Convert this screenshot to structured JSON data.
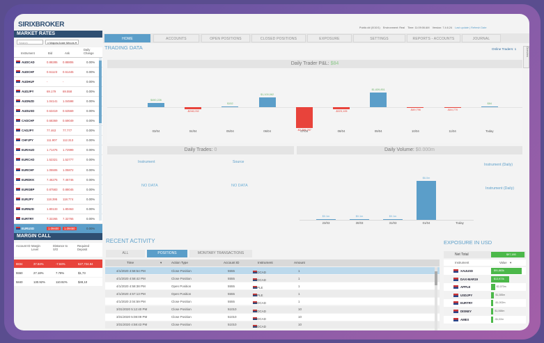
{
  "app": {
    "logo": "SIRIXBROKER"
  },
  "top_info": [
    "Public ## (0/10/1)",
    "Environment: Real",
    "Time: 11:09:06 AM",
    "Version: 7.4.6.24",
    "Last update | Refresh Date"
  ],
  "nav": [
    "HOME",
    "ACCOUNTS",
    "OPEN POSITIONS",
    "CLOSED POSITIONS",
    "EXPOSURE",
    "SETTINGS",
    "REPORTS - ACCOUNTS",
    "JOURNAL"
  ],
  "trading_data_title": "TRADING DATA",
  "online_traders": "Online Traders: 1",
  "side_tab": "Overview",
  "market_rates": {
    "title": "MARKET RATES",
    "search_placeholder": "Search",
    "group": "x Majors/Juste Minors",
    "columns": [
      "Instrument",
      "Bid",
      "Ask",
      "Daily Change"
    ],
    "rows": [
      {
        "sym": "AUDCAD",
        "bid": "0.88285",
        "ask": "0.88806",
        "chg": "0.00%"
      },
      {
        "sym": "AUDCHF",
        "bid": "0.61123",
        "ask": "0.61445",
        "chg": "0.00%"
      },
      {
        "sym": "AUDHUF",
        "bid": "-",
        "ask": "-",
        "chg": "0.00%"
      },
      {
        "sym": "AUDJPY",
        "bid": "69.179",
        "ask": "69.558",
        "chg": "0.00%"
      },
      {
        "sym": "AUDNZD",
        "bid": "1.04141",
        "ask": "1.04598",
        "chg": "0.00%"
      },
      {
        "sym": "AUDUSD",
        "bid": "0.63419",
        "ask": "0.63569",
        "chg": "0.00%"
      },
      {
        "sym": "CADCHF",
        "bid": "0.68369",
        "ask": "0.69049",
        "chg": "0.00%"
      },
      {
        "sym": "CADJPY",
        "bid": "77.463",
        "ask": "77.777",
        "chg": "0.00%"
      },
      {
        "sym": "CHFJPY",
        "bid": "111.907",
        "ask": "112.313",
        "chg": "0.00%"
      },
      {
        "sym": "EURAUD",
        "bid": "1.71476",
        "ask": "1.72999",
        "chg": "0.00%"
      },
      {
        "sym": "EURCAD",
        "bid": "1.52321",
        "ask": "1.52777",
        "chg": "0.00%"
      },
      {
        "sym": "EURCHF",
        "bid": "1.05506",
        "ask": "1.05872",
        "chg": "0.00%"
      },
      {
        "sym": "EURDKK",
        "bid": "7.46275",
        "ask": "7.46746",
        "chg": "0.00%"
      },
      {
        "sym": "EURGBP",
        "bid": "0.87583",
        "ask": "0.88045",
        "chg": "0.00%"
      },
      {
        "sym": "EURJPY",
        "bid": "118.395",
        "ask": "118.774",
        "chg": "0.00%"
      },
      {
        "sym": "EURNZD",
        "bid": "1.80133",
        "ask": "1.80463",
        "chg": "0.00%"
      },
      {
        "sym": "EURTRY",
        "bid": "7.32265",
        "ask": "7.32765",
        "chg": "0.00%"
      },
      {
        "sym": "EURUSD",
        "bid": "1.09400",
        "ask": "1.09450",
        "chg": "0.00%"
      }
    ]
  },
  "margin_call": {
    "title": "MARGIN CALL",
    "columns": [
      "Account ID",
      "Margin Level",
      "Distance to S/O",
      "Required Deposit"
    ],
    "rows": [
      {
        "id": "8834",
        "level": "37.84%",
        "dist": "-7.84%",
        "dep": "627,724.84"
      },
      {
        "id": "5550",
        "level": "27.18%",
        "dist": "7.78%",
        "dep": "$1,73"
      },
      {
        "id": "5840",
        "level": "130.92%",
        "dist": "110.92%",
        "dep": "$49,10"
      }
    ]
  },
  "pnl": {
    "title": "Daily Trader P&L:",
    "title_value": "$84",
    "chart_data": {
      "type": "bar",
      "categories": [
        "03/04",
        "04/04",
        "05/04",
        "06/04",
        "07/04",
        "08/04",
        "09/04",
        "10/04",
        "11/04",
        "Today"
      ],
      "values": [
        490226,
        -248032,
        152,
        1100062,
        -2306267,
        -223105,
        1639851,
        -49796,
        -44770,
        84
      ],
      "labels": [
        "$490,226",
        "-$248,032",
        "$152",
        "$1,100,062",
        "-$2,306,267",
        "-$223,105",
        "$1,639,851",
        "-$49,796",
        "-$44,770",
        "$84"
      ]
    }
  },
  "daily_trades": {
    "title": "Daily Trades:",
    "title_value": "0",
    "instrument_label": "Instrument",
    "source_label": "Source",
    "no_data": "NO DATA"
  },
  "daily_volume": {
    "title": "Daily Volume:",
    "title_value": "$0.000m",
    "instrument_daily": "Instrument (Daily)",
    "chart_data": {
      "type": "bar",
      "categories": [
        "23/03",
        "30/03",
        "31/03",
        "01/04",
        "Today"
      ],
      "values": [
        0.1,
        0.1,
        0.1,
        6.0,
        0
      ],
      "labels": [
        "$0.1m",
        "$0.1m",
        "$0.1m",
        "$6.0m",
        ""
      ]
    }
  },
  "recent_activity": {
    "title": "RECENT ACTIVITY",
    "tabs": [
      "ALL",
      "POSITIONS",
      "MONITARY TRANSACTIONS"
    ],
    "columns": [
      "Time",
      "Action Type",
      "Account ID",
      "Instrument",
      "Amount"
    ],
    "rows": [
      {
        "time": "4/1/2020 4:58:54 PM",
        "action": "Close Position",
        "account": "5555",
        "instrument": "AUDCAD",
        "amount": "1"
      },
      {
        "time": "4/1/2020 4:58:42 PM",
        "action": "Close Position",
        "account": "5555",
        "instrument": "AUDCAD",
        "amount": "1"
      },
      {
        "time": "4/1/2020 4:58:38 PM",
        "action": "Open Position",
        "account": "5555",
        "instrument": "APPLE",
        "amount": "1"
      },
      {
        "time": "4/1/2020 4:57:13 PM",
        "action": "Open Position",
        "account": "5555",
        "instrument": "APPLE",
        "amount": "1"
      },
      {
        "time": "4/1/2020 2:04:59 PM",
        "action": "Close Position",
        "account": "5555",
        "instrument": "AUDCAD",
        "amount": "1"
      },
      {
        "time": "3/31/2020 5:12:40 PM",
        "action": "Close Position",
        "account": "51010",
        "instrument": "USDCAD",
        "amount": "10"
      },
      {
        "time": "3/31/2020 5:08:09 PM",
        "action": "Close Position",
        "account": "51010",
        "instrument": "USDCAD",
        "amount": "10"
      },
      {
        "time": "3/31/2020 4:58:43 PM",
        "action": "Close Position",
        "account": "51010",
        "instrument": "USDCAD",
        "amount": "10"
      }
    ]
  },
  "exposure": {
    "title": "EXPOSURE IN USD",
    "net_total_label": "Net Total",
    "net_total_value": "$97,180",
    "columns": [
      "Instrument",
      "Value"
    ],
    "rows": [
      {
        "sym": "XAUUSD",
        "value": "$91,883k",
        "frac": 0.92
      },
      {
        "sym": "DAX-MAR19",
        "value": "$13,972k",
        "frac": 0.55
      },
      {
        "sym": "APPLE",
        "value": "$2,070m",
        "frac": 0.12
      },
      {
        "sym": "USDJPY",
        "value": "$1,285m",
        "frac": 0.09
      },
      {
        "sym": "EURTRY",
        "value": "-$1,002m",
        "frac": 0.07
      },
      {
        "sym": "DISNEY",
        "value": "$1,068m",
        "frac": 0.07
      },
      {
        "sym": "AMEX",
        "value": "-$1,02m",
        "frac": 0.06
      }
    ]
  },
  "colors": {
    "accent": "#5b9ec9",
    "header": "#2f4f72",
    "neg": "#e8433b",
    "pos": "#4cb84a"
  }
}
